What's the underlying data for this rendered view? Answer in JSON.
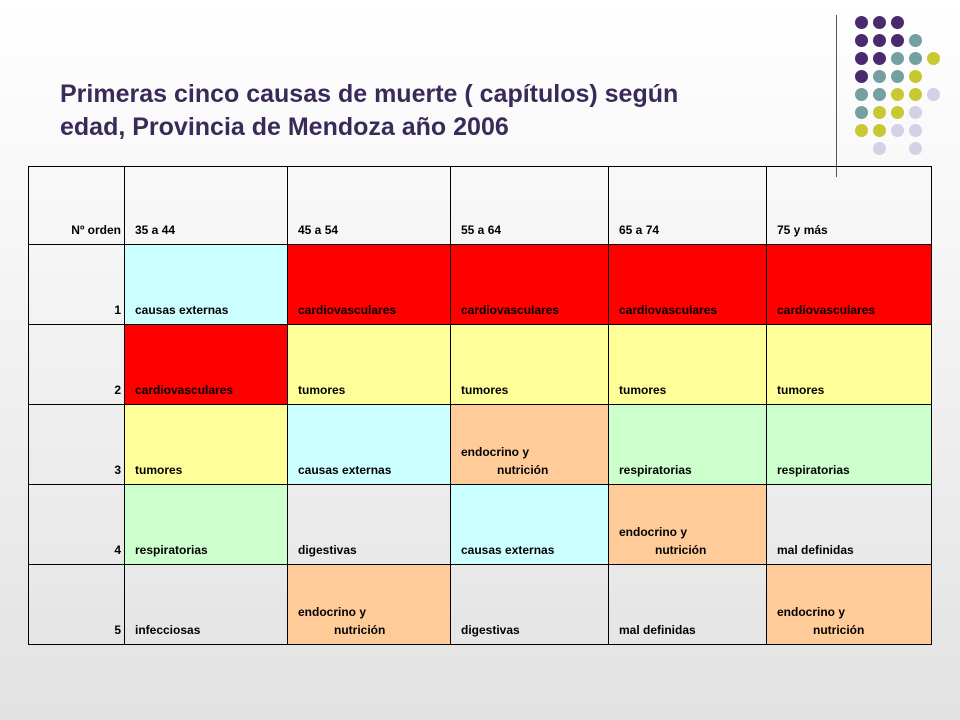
{
  "title": {
    "line1": "Primeras cinco causas de muerte ( capítulos) según",
    "line2": "edad, Provincia de Mendoza año 2006"
  },
  "colors": {
    "cyan": "#ccffff",
    "red": "#ff0000",
    "yellow": "#ffff99",
    "peach": "#ffcc99",
    "green": "#ccffcc",
    "dot_purple": "#4a2a6e",
    "dot_teal": "#74a0a0",
    "dot_olive": "#c8c832",
    "dot_lavender": "#d2d2e6"
  },
  "table": {
    "headers": [
      "Nº orden",
      "35 a 44",
      "45 a 54",
      "55 a 64",
      "65 a 74",
      "75 y más"
    ],
    "rows": [
      {
        "num": "1",
        "cells": [
          {
            "text": "causas externas",
            "color": "cyan"
          },
          {
            "text": "cardiovasculares",
            "color": "red"
          },
          {
            "text": "cardiovasculares",
            "color": "red"
          },
          {
            "text": "cardiovasculares",
            "color": "red"
          },
          {
            "text": "cardiovasculares",
            "color": "red"
          }
        ]
      },
      {
        "num": "2",
        "cells": [
          {
            "text": "cardiovasculares",
            "color": "red"
          },
          {
            "text": "tumores",
            "color": "yellow"
          },
          {
            "text": "tumores",
            "color": "yellow"
          },
          {
            "text": "tumores",
            "color": "yellow"
          },
          {
            "text": "tumores",
            "color": "yellow"
          }
        ]
      },
      {
        "num": "3",
        "cells": [
          {
            "text": "tumores",
            "color": "yellow"
          },
          {
            "text": "causas externas",
            "color": "cyan"
          },
          {
            "text": "endocrino y",
            "text2": "nutrición",
            "color": "peach"
          },
          {
            "text": "respiratorias",
            "color": "green"
          },
          {
            "text": "respiratorias",
            "color": "green"
          }
        ]
      },
      {
        "num": "4",
        "cells": [
          {
            "text": "respiratorias",
            "color": "green"
          },
          {
            "text": "digestivas",
            "color": "none"
          },
          {
            "text": "causas externas",
            "color": "cyan"
          },
          {
            "text": "endocrino y",
            "text2": "nutrición",
            "color": "peach"
          },
          {
            "text": "mal definidas",
            "color": "none"
          }
        ]
      },
      {
        "num": "5",
        "cells": [
          {
            "text": "infecciosas",
            "color": "none"
          },
          {
            "text": "endocrino y",
            "text2": "nutrición",
            "color": "peach"
          },
          {
            "text": "digestivas",
            "color": "none"
          },
          {
            "text": "mal definidas",
            "color": "none"
          },
          {
            "text": "endocrino y",
            "text2": "nutrición",
            "color": "peach"
          }
        ]
      }
    ]
  }
}
